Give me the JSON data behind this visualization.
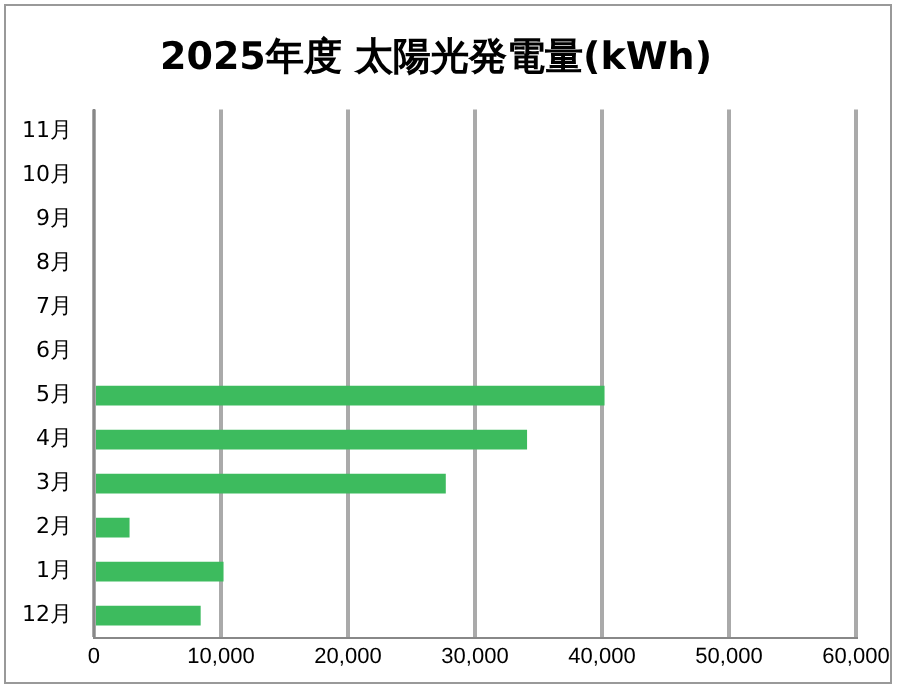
{
  "chart_data": {
    "type": "bar",
    "orientation": "horizontal",
    "title": "2025年度 太陽光発電量(kWh)",
    "categories": [
      "11月",
      "10月",
      "9月",
      "8月",
      "7月",
      "6月",
      "5月",
      "4月",
      "3月",
      "2月",
      "1月",
      "12月"
    ],
    "values": [
      null,
      null,
      null,
      null,
      null,
      null,
      40200,
      34100,
      27700,
      2800,
      10200,
      8400
    ],
    "color": "#3dbb5e",
    "xlim": [
      0,
      60000
    ],
    "xticks": [
      {
        "value": 0,
        "label": "0"
      },
      {
        "value": 10000,
        "label": "10,000"
      },
      {
        "value": 20000,
        "label": "20,000"
      },
      {
        "value": 30000,
        "label": "30,000"
      },
      {
        "value": 40000,
        "label": "40,000"
      },
      {
        "value": 50000,
        "label": "50,000"
      },
      {
        "value": 60000,
        "label": "60,000"
      }
    ],
    "grid": "x",
    "legend": false
  }
}
